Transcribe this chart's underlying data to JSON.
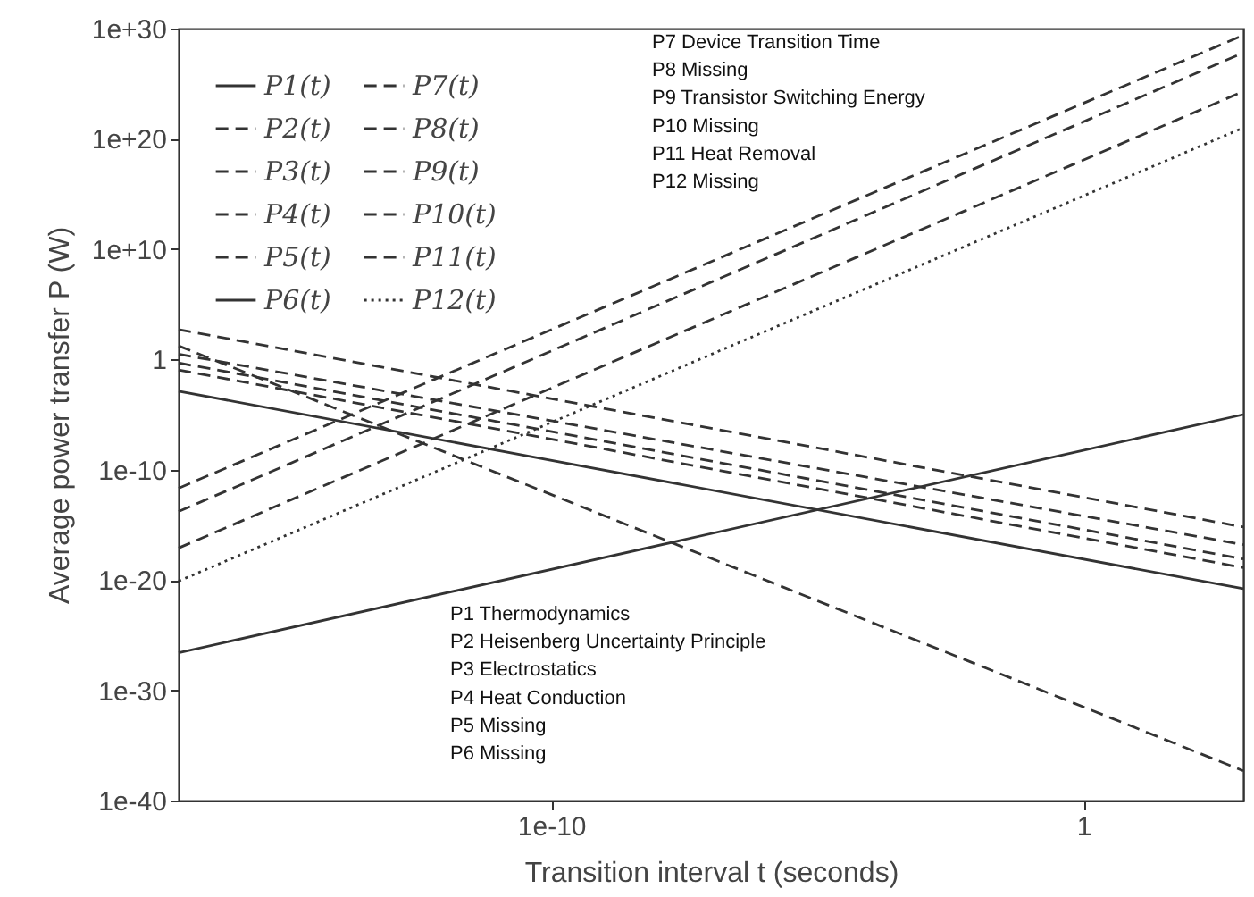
{
  "chart_data": {
    "type": "line",
    "xlabel": "Transition interval t (seconds)",
    "ylabel": "Average power transfer P (W)",
    "log": "xy",
    "grid": false,
    "legend": "top left",
    "x": [
      1e-17,
      1000.0
    ],
    "xlim": [
      1e-17,
      1000.0
    ],
    "xticks": [
      {
        "value": 1e-10,
        "label": "1e-10"
      },
      1
    ],
    "ylim": [
      1e-40,
      1e+30
    ],
    "yticks": [
      {
        "value": 1e-40,
        "label": "1e-40"
      },
      {
        "value": 1e-30,
        "label": "1e-30"
      },
      {
        "value": 1e-20,
        "label": "1e-20"
      },
      {
        "value": 1e-10,
        "label": "1e-10"
      },
      1,
      {
        "value": 10000000000.0,
        "label": "1e+10"
      },
      {
        "value": 1e+20,
        "label": "1e+20"
      },
      {
        "value": 1e+30,
        "label": "1e+30"
      }
    ],
    "series": [
      {
        "name": "P1(t)",
        "color": "#333333",
        "line_style": "solid",
        "values": [
          0.0013,
          1.6e-21
        ]
      },
      {
        "name": "P2(t)",
        "color": "#333333",
        "line_style": "dashed",
        "values": [
          17,
          5e-38
        ]
      },
      {
        "name": "P3(t)",
        "color": "#333333",
        "line_style": "dashed",
        "values": [
          0.48,
          7.9e-19
        ]
      },
      {
        "name": "P4(t)",
        "color": "#333333",
        "line_style": "dashed",
        "values": [
          520.0,
          6.3e-16
        ]
      },
      {
        "name": "P5(t)",
        "color": "#333333",
        "line_style": "dashed",
        "values": [
          3,
          1.6e-17
        ]
      },
      {
        "name": "P6(t)",
        "color": "#333333",
        "line_style": "solid",
        "values": [
          2.5e-27,
          1e-05
        ]
      },
      {
        "name": "P7(t)",
        "color": "#333333",
        "line_style": "dashed",
        "values": [
          2.1e-12,
          2.5e+29
        ]
      },
      {
        "name": "P8(t)",
        "color": "#333333",
        "line_style": "dashed",
        "values": [
          1.6e-14,
          6.3e+27
        ]
      },
      {
        "name": "P9(t)",
        "color": "#333333",
        "line_style": "dashed",
        "values": [
          7.9e-18,
          2e+24
        ]
      },
      {
        "name": "P10(t)",
        "color": "#333333",
        "line_style": "dashed",
        "values": [
          null,
          null
        ]
      },
      {
        "name": "P11(t)",
        "color": "#333333",
        "line_style": "dashed",
        "values": [
          0.11,
          1.3e-19
        ]
      },
      {
        "name": "P12(t)",
        "color": "#333333",
        "line_style": "dotted",
        "values": [
          7.9e-21,
          1e+21
        ]
      }
    ],
    "annotations": [
      "P7 Device Transition Time",
      "P8 Missing",
      "P9 Transistor Switching Energy",
      "P10 Missing",
      "P11 Heat Removal",
      "P12 Missing",
      "P1 Thermodynamics",
      "P2 Heisenberg Uncertainty Principle",
      "P3 Electrostatics",
      "P4 Heat Conduction",
      "P5 Missing",
      "P6 Missing"
    ]
  }
}
